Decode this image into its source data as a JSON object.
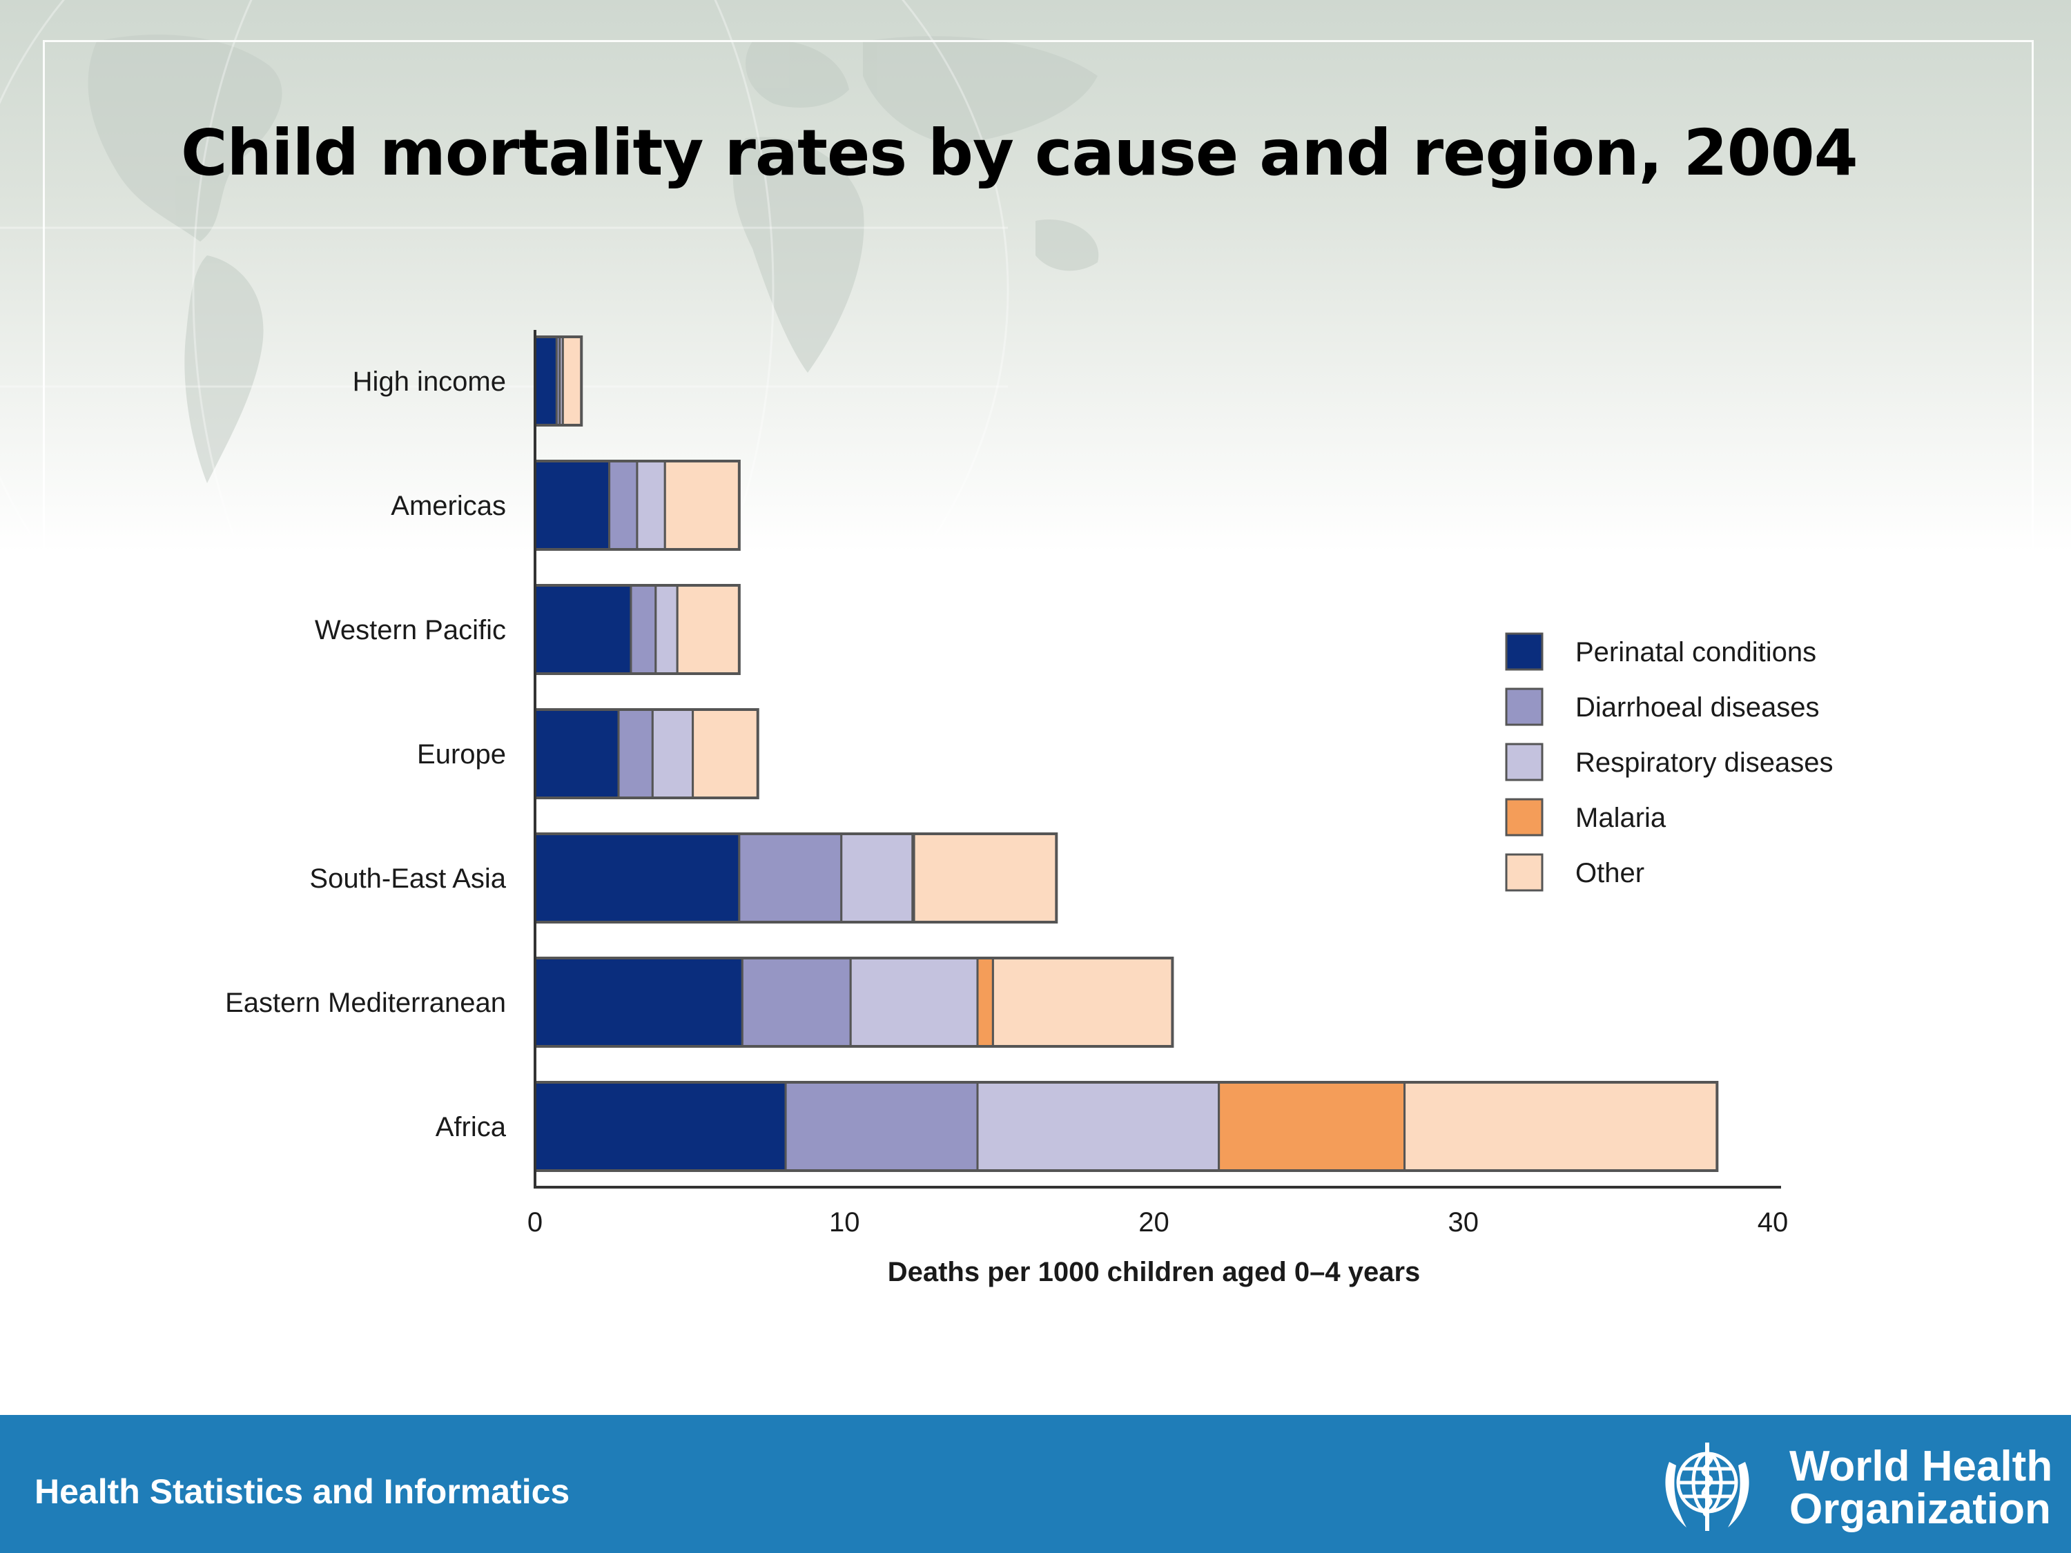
{
  "slide": {
    "title": "Child mortality rates by cause and region, 2004"
  },
  "footer": {
    "left_text": "Health Statistics and Informatics",
    "logo_line1": "World Health",
    "logo_line2": "Organization"
  },
  "colors": {
    "perinatal": "#0a2d7d",
    "diarrhoeal": "#9696c4",
    "respiratory": "#c4c2de",
    "malaria": "#f49d59",
    "other": "#fcdac0",
    "footer": "#1f7db8"
  },
  "chart_data": {
    "type": "bar",
    "orientation": "horizontal",
    "stacked": true,
    "title": "",
    "xlabel": "Deaths per 1000 children aged 0–4 years",
    "ylabel": "",
    "xlim": [
      0,
      40
    ],
    "xticks": [
      0,
      10,
      20,
      30,
      40
    ],
    "grid": false,
    "legend_position": "right",
    "categories": [
      "High income",
      "Americas",
      "Western Pacific",
      "Europe",
      "South-East Asia",
      "Eastern Mediterranean",
      "Africa"
    ],
    "series": [
      {
        "name": "Perinatal conditions",
        "color": "#0a2d7d",
        "values": [
          0.7,
          2.4,
          3.1,
          2.7,
          6.6,
          6.7,
          8.1
        ]
      },
      {
        "name": "Diarrhoeal diseases",
        "color": "#9696c4",
        "values": [
          0.1,
          0.9,
          0.8,
          1.1,
          3.3,
          3.5,
          6.2
        ]
      },
      {
        "name": "Respiratory diseases",
        "color": "#c4c2de",
        "values": [
          0.1,
          0.9,
          0.7,
          1.3,
          2.3,
          4.1,
          7.8
        ]
      },
      {
        "name": "Malaria",
        "color": "#f49d59",
        "values": [
          0,
          0,
          0,
          0,
          0.05,
          0.5,
          6.0
        ]
      },
      {
        "name": "Other",
        "color": "#fcdac0",
        "values": [
          0.6,
          2.4,
          2.0,
          2.1,
          4.6,
          5.8,
          10.1
        ]
      }
    ]
  }
}
